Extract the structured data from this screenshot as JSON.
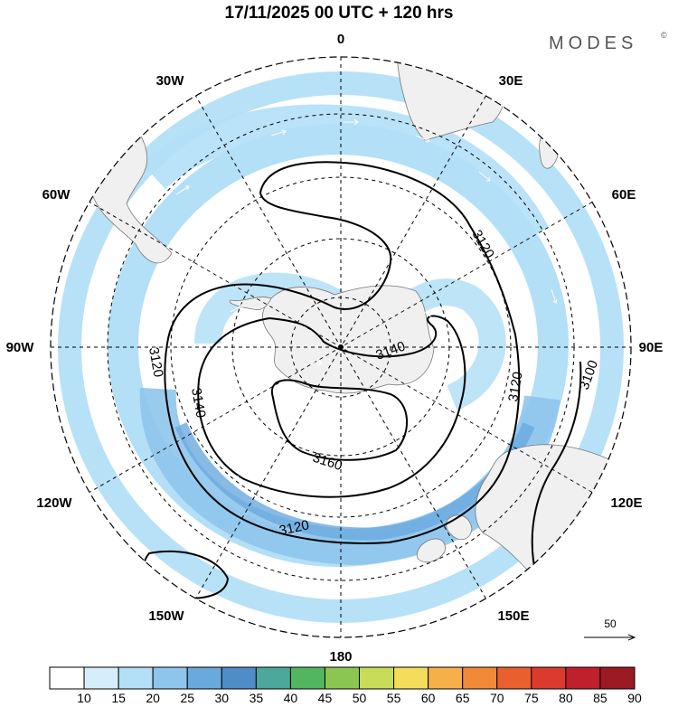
{
  "title": "17/11/2025  00 UTC  + 120 hrs",
  "brand": "MODES",
  "brand_mark": "©",
  "longitude_labels": {
    "lon_0": "0",
    "lon_30e": "30E",
    "lon_60e": "60E",
    "lon_90e": "90E",
    "lon_120e": "120E",
    "lon_150e": "150E",
    "lon_180": "180",
    "lon_150w": "150W",
    "lon_120w": "120W",
    "lon_90w": "90W",
    "lon_60w": "60W",
    "lon_30w": "30W"
  },
  "contour_labels": {
    "c3160": "3160",
    "c3140_a": "3140",
    "c3140_b": "3140",
    "c3120_a": "3120",
    "c3120_b": "3120",
    "c3120_c": "3120",
    "c3120_d": "3120",
    "c3100": "3100"
  },
  "reference_vector_label": "50",
  "colorbar": {
    "labels": [
      "10",
      "15",
      "20",
      "25",
      "30",
      "35",
      "40",
      "45",
      "50",
      "55",
      "60",
      "65",
      "70",
      "75",
      "80",
      "85",
      "90"
    ],
    "colors": [
      "#ffffff",
      "#d6eefb",
      "#b3dff7",
      "#8ec5ec",
      "#6aa9de",
      "#4e8dc8",
      "#4ba89a",
      "#52b560",
      "#8bc653",
      "#c8dc5a",
      "#f5dd5c",
      "#f5b04a",
      "#f08a38",
      "#e9602e",
      "#dc3a2e",
      "#c01f2c",
      "#9c1a23"
    ]
  }
}
